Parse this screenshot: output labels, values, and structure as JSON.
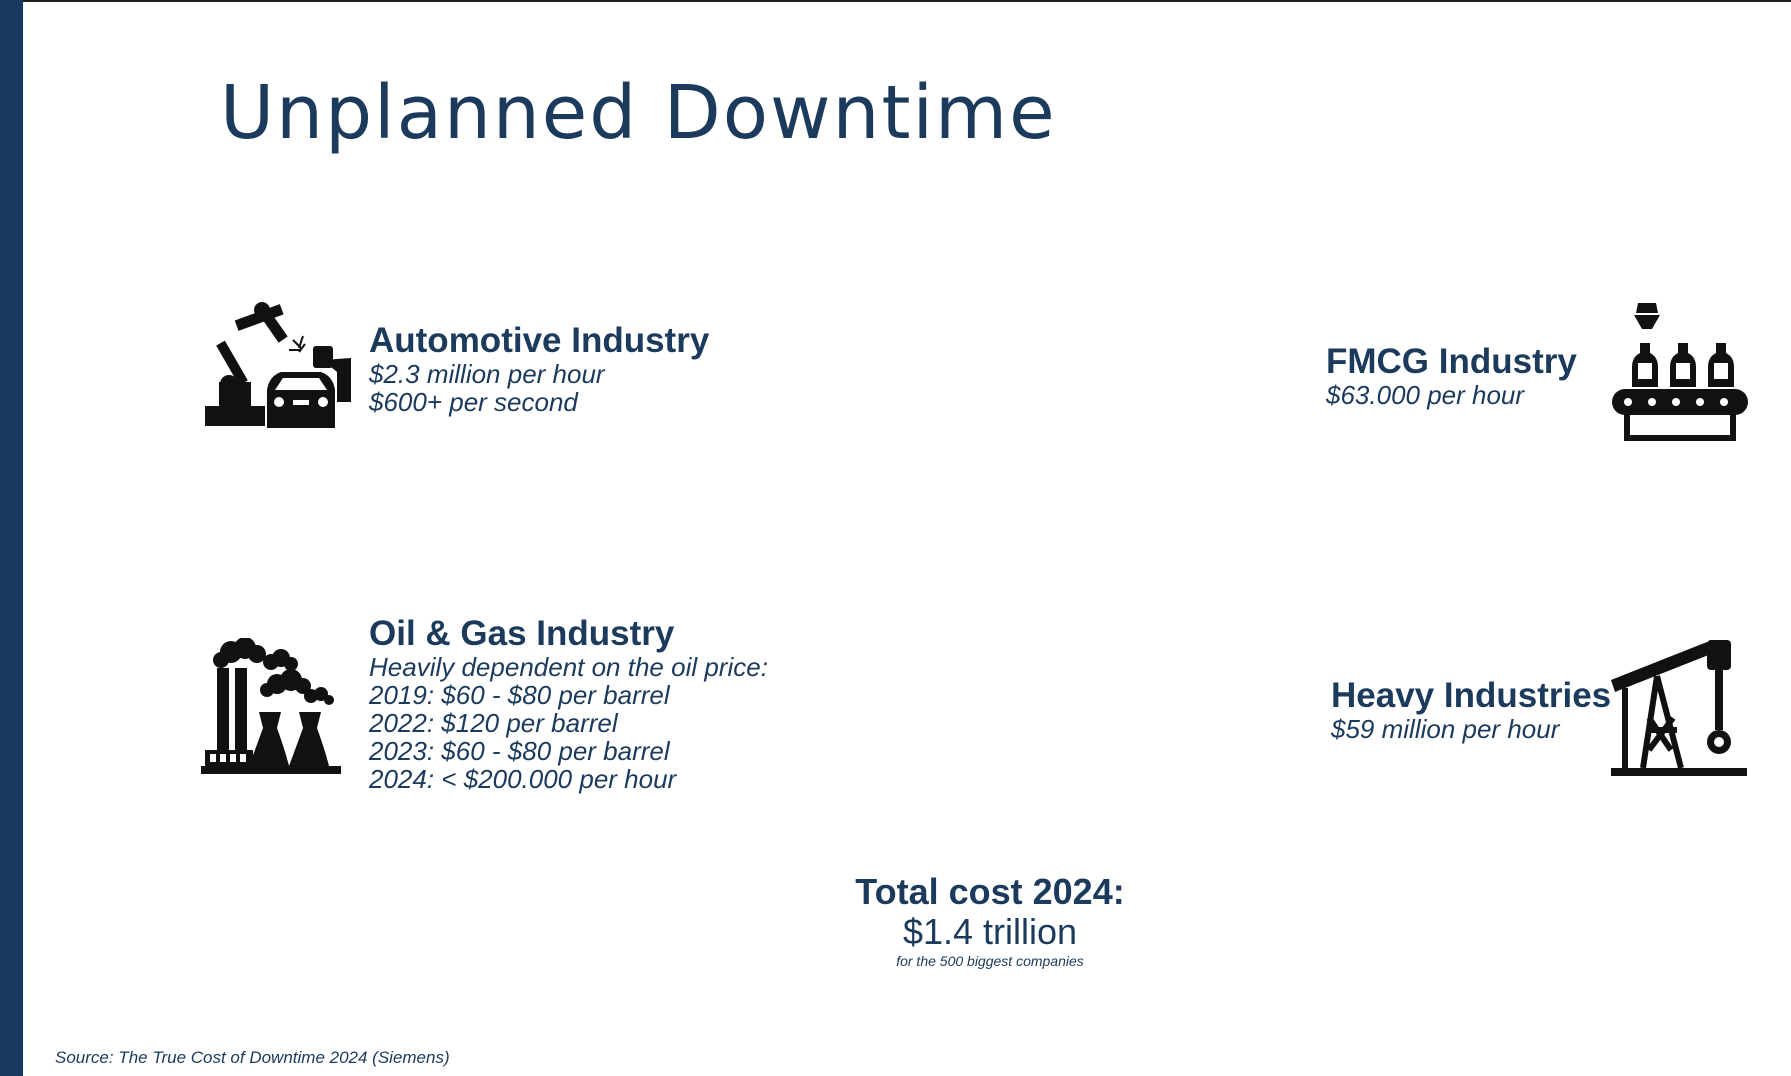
{
  "slide": {
    "title": "Unplanned Downtime",
    "colors": {
      "accent": "#173a5e",
      "text": "#1b3a5c",
      "icon": "#111111"
    }
  },
  "automotive": {
    "icon": "robot-arm-car-icon",
    "heading": "Automotive Industry",
    "lines": [
      "$2.3 million per hour",
      "$600+ per second"
    ]
  },
  "fmcg": {
    "icon": "bottle-conveyor-icon",
    "heading": "FMCG Industry",
    "lines": [
      "$63.000 per hour"
    ]
  },
  "oilgas": {
    "icon": "factory-smokestack-icon",
    "heading": "Oil & Gas Industry",
    "lines": [
      "Heavily dependent on the oil price:",
      "2019: $60 - $80 per barrel",
      "2022: $120 per barrel",
      "2023: $60 - $80 per barrel",
      "2024: < $200.000 per hour"
    ]
  },
  "heavy": {
    "icon": "oil-pump-jack-icon",
    "heading": "Heavy Industries",
    "lines": [
      "$59 million per hour"
    ]
  },
  "total": {
    "label": "Total cost 2024:",
    "value": "$1.4 trillion",
    "note": "for the 500 biggest companies"
  },
  "source": "Source: The True Cost of Downtime 2024 (Siemens)"
}
